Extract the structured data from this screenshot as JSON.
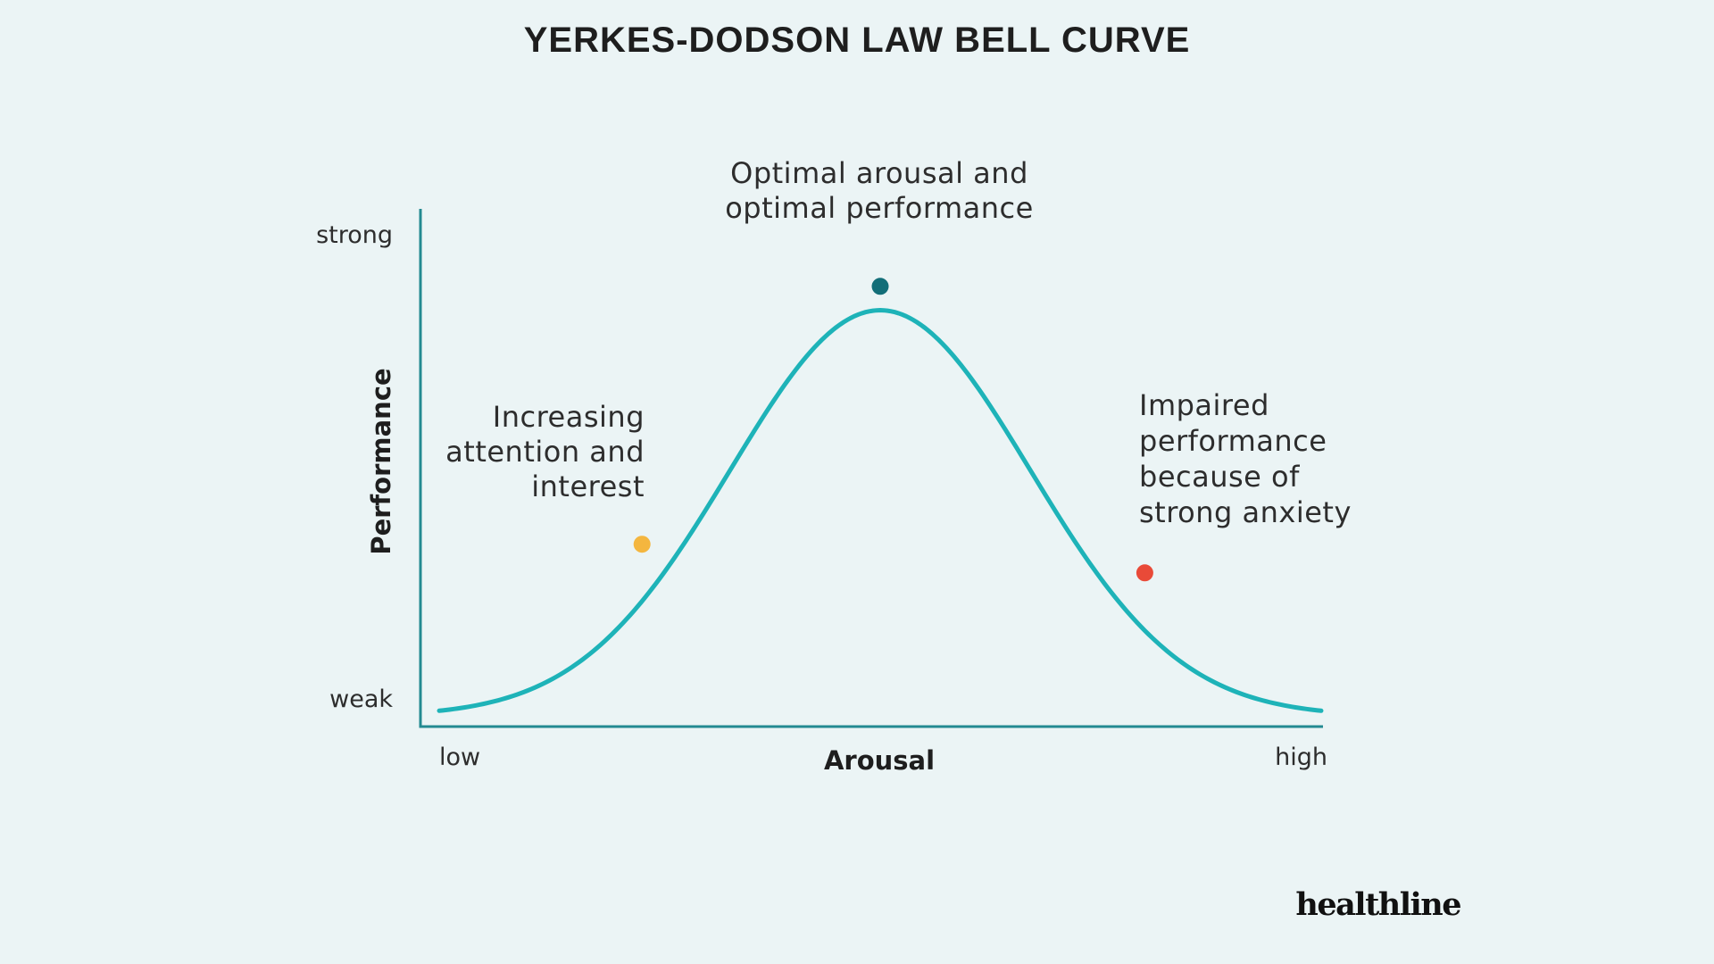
{
  "chart_data": {
    "type": "line",
    "title": "YERKES-DODSON LAW BELL CURVE",
    "xlabel": "Arousal",
    "ylabel": "Performance",
    "x_ticks": [
      "low",
      "high"
    ],
    "y_ticks": [
      "strong",
      "weak"
    ],
    "xlim": [
      0,
      1
    ],
    "ylim": [
      0,
      1
    ],
    "grid": false,
    "legend": "none",
    "curve": {
      "peak_x": 0.5,
      "peak_y": 0.87,
      "base_y": 0.02,
      "spread": 0.17
    },
    "annotations": [
      {
        "id": "increasing",
        "lines": [
          "Increasing",
          "attention and",
          "interest"
        ],
        "x": 0.23,
        "y": 0.38,
        "color": "#F4B63F"
      },
      {
        "id": "optimal",
        "lines": [
          "Optimal arousal and",
          "optimal performance"
        ],
        "x": 0.5,
        "y": 0.92,
        "color": "#126E78"
      },
      {
        "id": "impaired",
        "lines": [
          "Impaired",
          "performance",
          "because of",
          "strong anxiety"
        ],
        "x": 0.8,
        "y": 0.32,
        "color": "#E94A38"
      }
    ]
  },
  "brand": "healthline",
  "colors": {
    "background": "#EBF4F5",
    "curve": "#1EB3B8",
    "axis": "#238A91",
    "text": "#2D2D2D",
    "title": "#1E1E1E"
  }
}
